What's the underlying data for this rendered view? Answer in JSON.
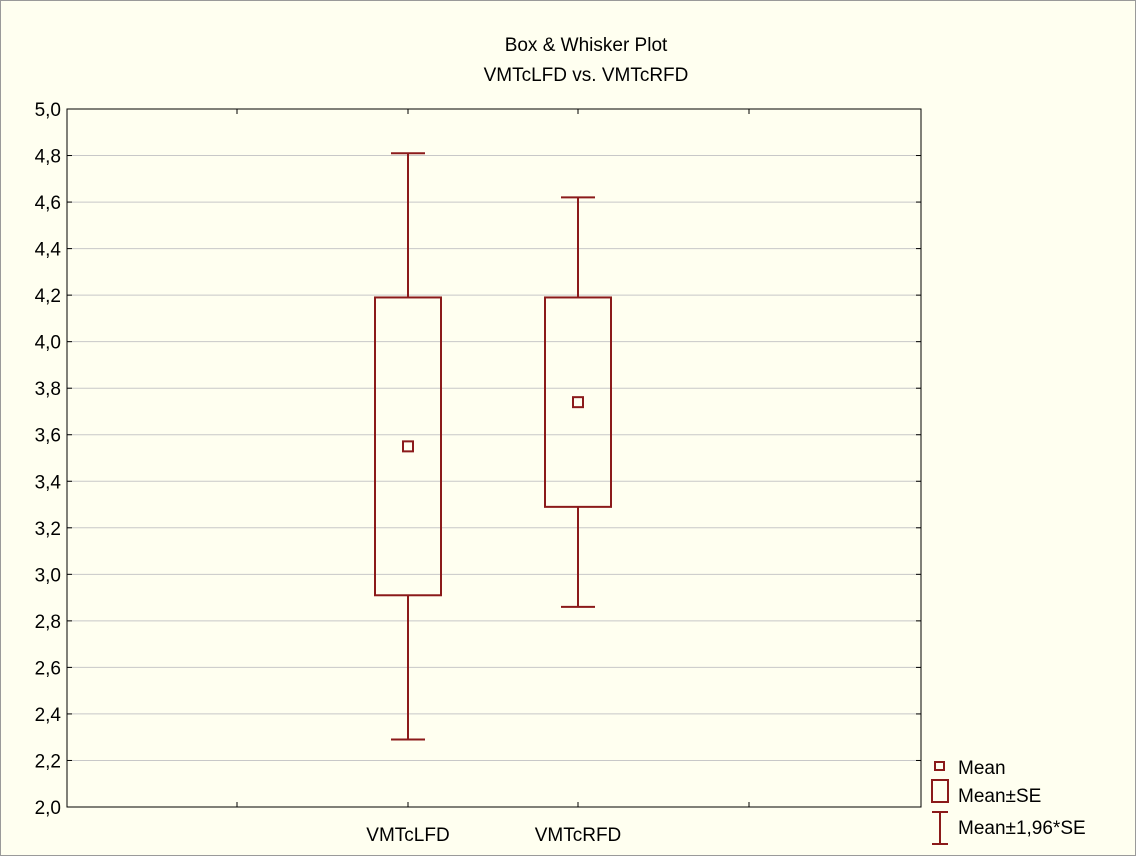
{
  "chart_data": {
    "type": "box",
    "title": "Box & Whisker Plot",
    "subtitle": "VMTcLFD  vs. VMTcRFD",
    "xlabel": "",
    "ylabel": "",
    "ylim": [
      2.0,
      5.0
    ],
    "y_ticks": [
      "2,0",
      "2,2",
      "2,4",
      "2,6",
      "2,8",
      "3,0",
      "3,2",
      "3,4",
      "3,6",
      "3,8",
      "4,0",
      "4,2",
      "4,4",
      "4,6",
      "4,8",
      "5,0"
    ],
    "y_tick_values": [
      2.0,
      2.2,
      2.4,
      2.6,
      2.8,
      3.0,
      3.2,
      3.4,
      3.6,
      3.8,
      4.0,
      4.2,
      4.4,
      4.6,
      4.8,
      5.0
    ],
    "grid": true,
    "categories": [
      "VMTcLFD",
      "VMTcRFD"
    ],
    "series": [
      {
        "category": "VMTcLFD",
        "mean": 3.55,
        "mean_minus_se": 2.91,
        "mean_plus_se": 4.19,
        "mean_minus_196se": 2.29,
        "mean_plus_196se": 4.81
      },
      {
        "category": "VMTcRFD",
        "mean": 3.74,
        "mean_minus_se": 3.29,
        "mean_plus_se": 4.19,
        "mean_minus_196se": 2.86,
        "mean_plus_196se": 4.62
      }
    ],
    "legend": {
      "position": "bottom-right",
      "entries": [
        "Mean",
        "Mean±SE",
        "Mean±1,96*SE"
      ]
    },
    "colors": {
      "series": "#8b1a1a",
      "grid": "#c8c8c8",
      "background": "#fffff0"
    }
  }
}
